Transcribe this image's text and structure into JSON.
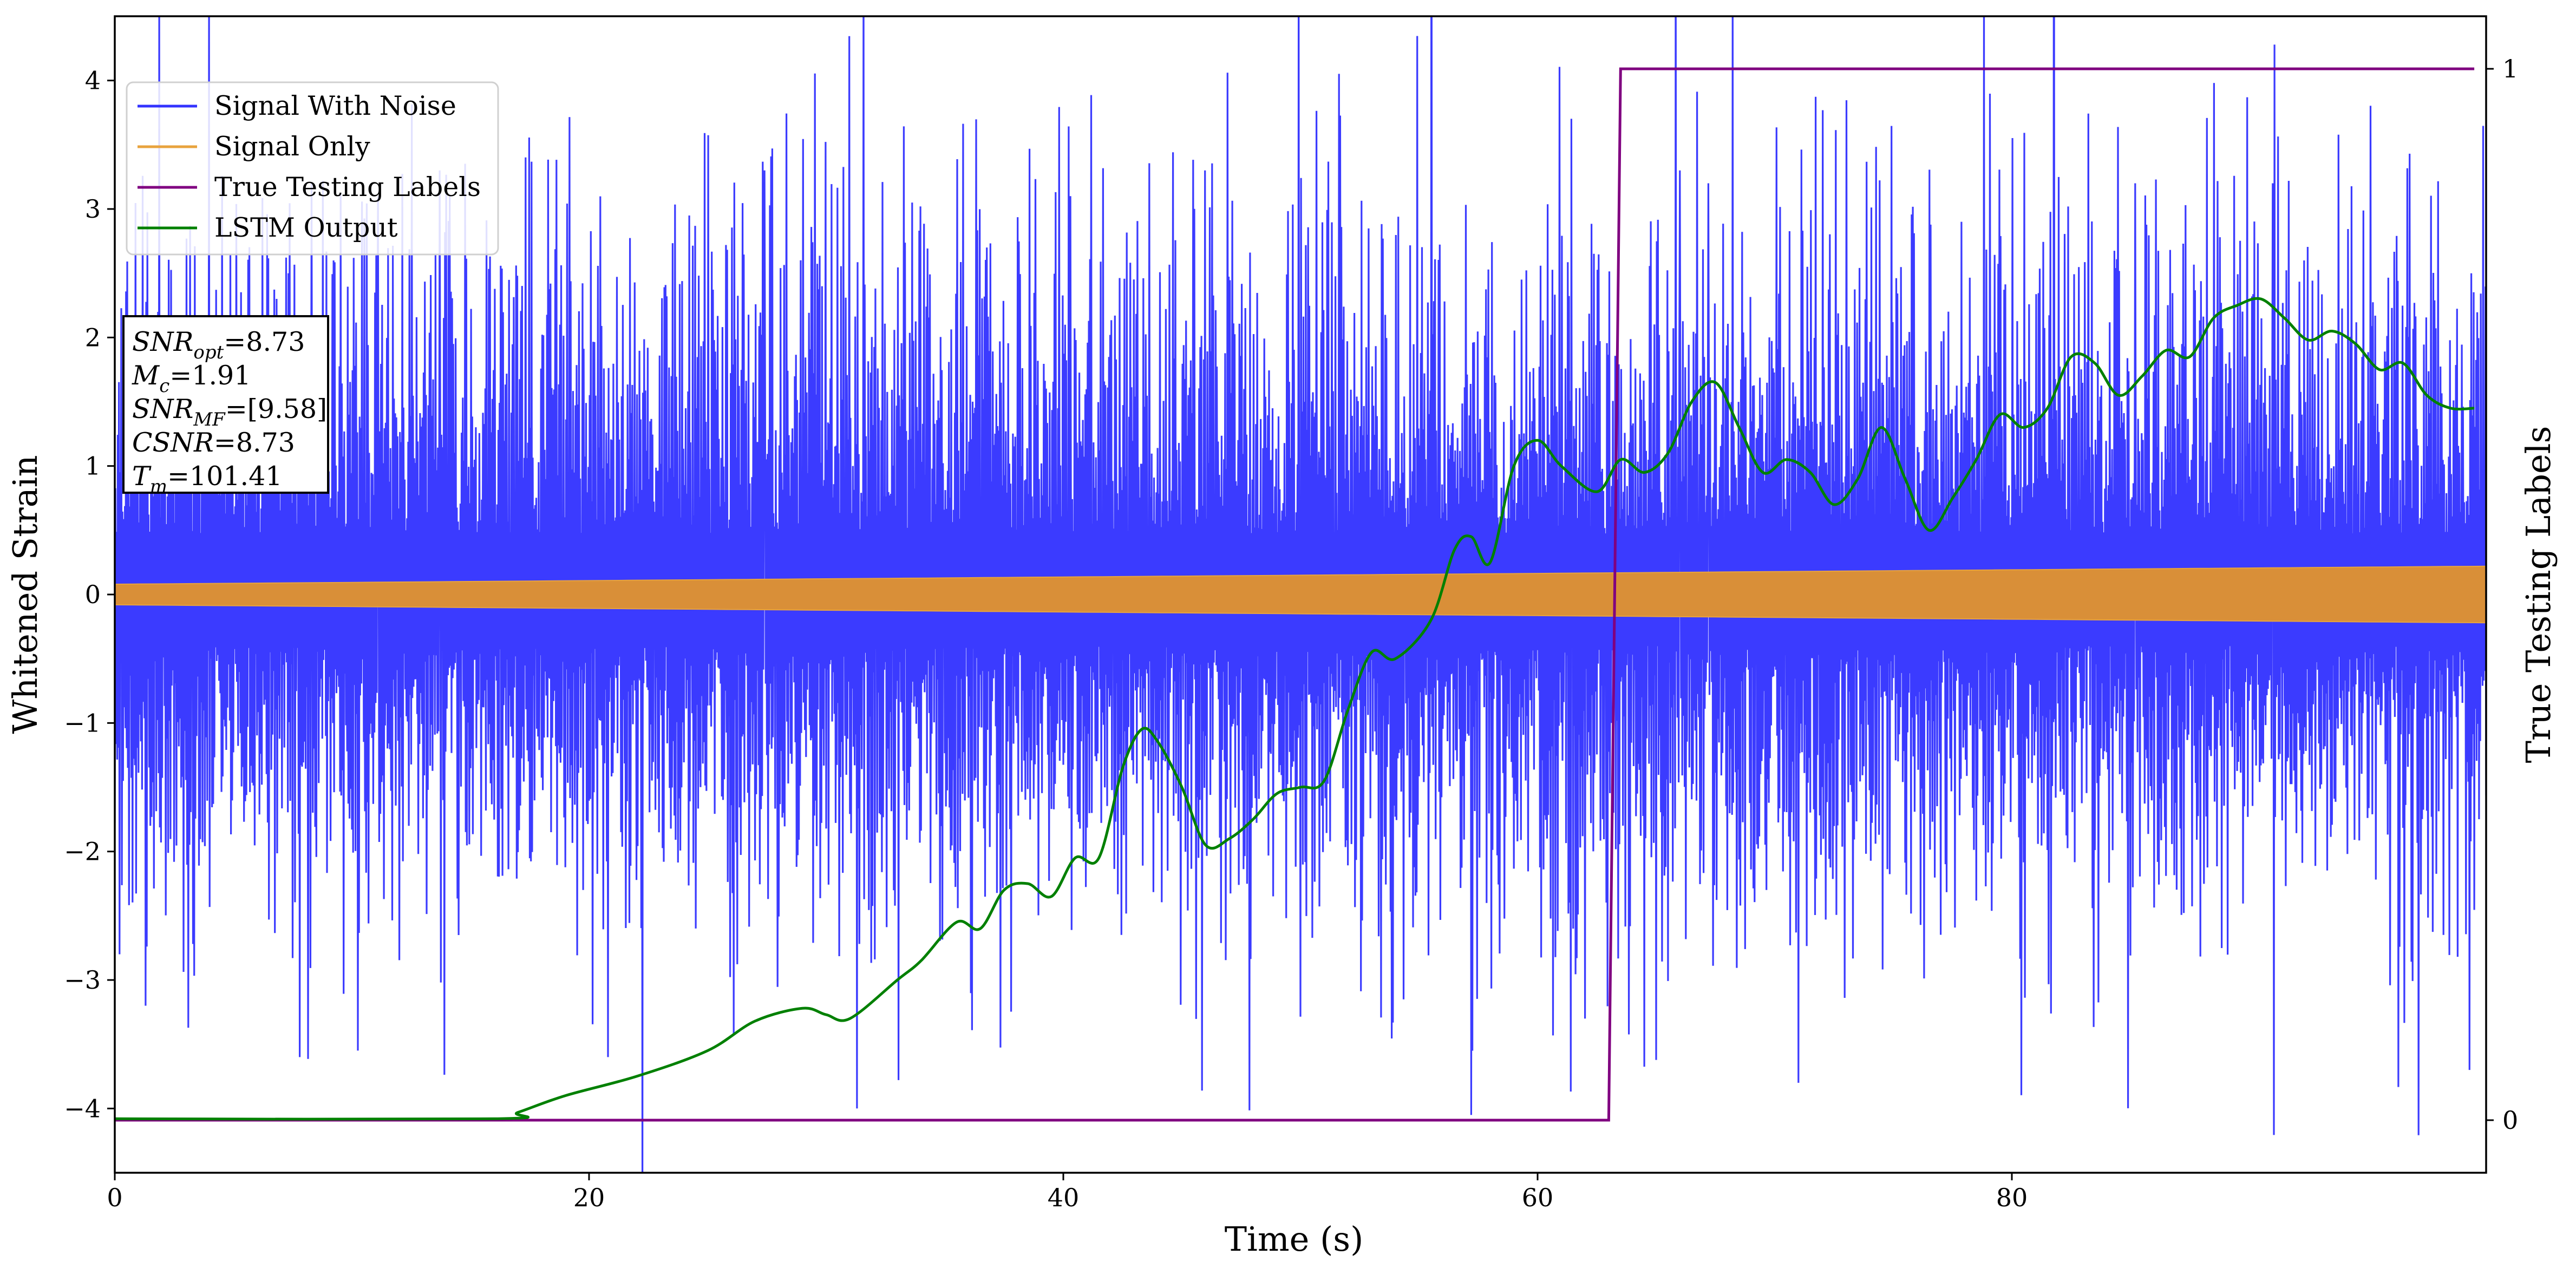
{
  "chart_data": {
    "type": "line",
    "xlabel": "Time (s)",
    "ylabel": "Whitened Strain",
    "y2label": "True Testing Labels",
    "xlim": [
      0,
      100
    ],
    "ylim": [
      -4.5,
      4.5
    ],
    "y2lim": [
      -0.05,
      1.05
    ],
    "x_ticks": [
      0,
      20,
      40,
      60,
      80
    ],
    "y_ticks": [
      -4,
      -3,
      -2,
      -1,
      0,
      1,
      2,
      3,
      4
    ],
    "y2_ticks": [
      0,
      1
    ],
    "x_tick_labels": [
      "0",
      "20",
      "40",
      "60",
      "80"
    ],
    "y_tick_labels": [
      "−4",
      "−3",
      "−2",
      "−1",
      "0",
      "1",
      "2",
      "3",
      "4"
    ],
    "y2_tick_labels": [
      "0",
      "1"
    ],
    "grid": false,
    "legend_position": "top-left",
    "series": [
      {
        "name": "Signal With Noise",
        "color": "#3333ff",
        "axis": "left",
        "kind": "noise",
        "typical_range": [
          -1.6,
          1.9
        ],
        "peak_values": [
          {
            "x": 0.2,
            "y": -2.8
          },
          {
            "x": 1.3,
            "y": -3.2
          },
          {
            "x": 7.8,
            "y": -3.6
          },
          {
            "x": 8.3,
            "y": 3.2
          },
          {
            "x": 11.1,
            "y": 3.1
          },
          {
            "x": 13.7,
            "y": 3.3
          },
          {
            "x": 20.8,
            "y": -3.6
          },
          {
            "x": 27.4,
            "y": 3.3
          },
          {
            "x": 31.3,
            "y": -4.0
          },
          {
            "x": 40.3,
            "y": 3.1
          },
          {
            "x": 57.2,
            "y": -4.05
          },
          {
            "x": 62.0,
            "y": -3.3
          },
          {
            "x": 66.0,
            "y": 3.3
          },
          {
            "x": 67.2,
            "y": 3.2
          },
          {
            "x": 71.0,
            "y": -3.8
          },
          {
            "x": 85.2,
            "y": 3.2
          },
          {
            "x": 91.0,
            "y": 3.2
          },
          {
            "x": 99.3,
            "y": -3.7
          }
        ]
      },
      {
        "name": "Signal Only",
        "color": "#e8a33d",
        "axis": "left",
        "kind": "envelope",
        "amplitude": [
          {
            "x": 0,
            "y": 0.08
          },
          {
            "x": 100,
            "y": 0.22
          }
        ]
      },
      {
        "name": "True Testing Labels",
        "color": "#800080",
        "axis": "right",
        "kind": "step",
        "x": [
          0,
          63.0,
          63.5,
          99.5
        ],
        "y": [
          0,
          0,
          1,
          1
        ]
      },
      {
        "name": "LSTM Output",
        "color": "#008000",
        "axis": "left",
        "kind": "line",
        "x": [
          0,
          16,
          17,
          19,
          22,
          25,
          27,
          29,
          30,
          31,
          33,
          34,
          35.5,
          36.5,
          37.5,
          38.5,
          39.5,
          40.5,
          41.5,
          42.5,
          43.3,
          44,
          45,
          46,
          47,
          48,
          49,
          50,
          51,
          52,
          53,
          54,
          55.5,
          56.5,
          57.2,
          58,
          59,
          60,
          61,
          62.5,
          63.5,
          64.5,
          65.5,
          66.5,
          67.5,
          68.5,
          69.5,
          70.5,
          71.5,
          72.5,
          73.5,
          74.5,
          75.5,
          76.5,
          77.5,
          78.5,
          79.5,
          80.5,
          81.5,
          82.5,
          83.5,
          84.5,
          85.5,
          86.5,
          87.5,
          88.5,
          89.5,
          90.5,
          91.5,
          92.5,
          93.5,
          94.5,
          95.5,
          96.5,
          97.5,
          98.5,
          99.5
        ],
        "y": [
          -4.08,
          -4.08,
          -4.03,
          -3.9,
          -3.75,
          -3.55,
          -3.32,
          -3.22,
          -3.27,
          -3.3,
          -3.0,
          -2.85,
          -2.55,
          -2.6,
          -2.3,
          -2.25,
          -2.35,
          -2.05,
          -2.05,
          -1.35,
          -1.05,
          -1.15,
          -1.5,
          -1.95,
          -1.9,
          -1.75,
          -1.55,
          -1.5,
          -1.45,
          -0.9,
          -0.45,
          -0.5,
          -0.2,
          0.35,
          0.45,
          0.25,
          1.0,
          1.2,
          1.0,
          0.8,
          1.05,
          0.95,
          1.1,
          1.5,
          1.65,
          1.3,
          0.95,
          1.05,
          0.95,
          0.7,
          0.9,
          1.3,
          0.9,
          0.5,
          0.75,
          1.05,
          1.4,
          1.3,
          1.45,
          1.85,
          1.8,
          1.55,
          1.7,
          1.9,
          1.85,
          2.15,
          2.25,
          2.3,
          2.15,
          1.98,
          2.05,
          1.95,
          1.75,
          1.8,
          1.55,
          1.45,
          1.45
        ]
      }
    ],
    "annotation_box": {
      "position": "upper-left",
      "lines": [
        {
          "label": "SNR",
          "sub": "opt",
          "value": "=8.73"
        },
        {
          "label": "M",
          "sub": "c",
          "value": "=1.91"
        },
        {
          "label": "SNR",
          "sub": "MF",
          "value": "=[9.58]"
        },
        {
          "label": "CSNR",
          "sub": "",
          "value": "=8.73"
        },
        {
          "label": "T",
          "sub": "m",
          "value": "=101.41"
        }
      ]
    }
  }
}
